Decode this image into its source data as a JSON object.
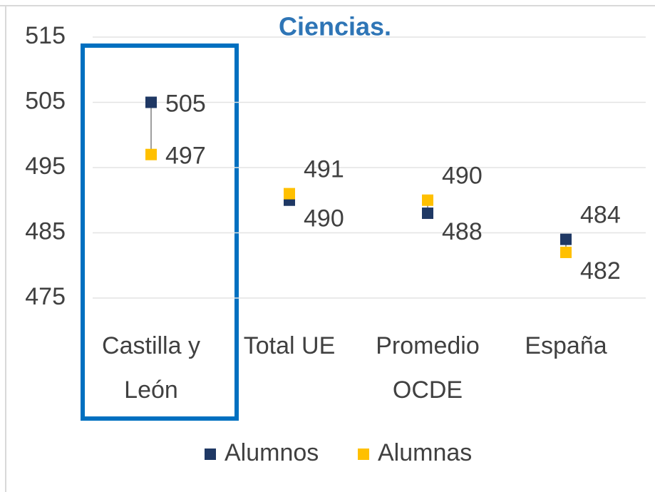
{
  "chart_data": {
    "type": "dot",
    "title": "Ciencias.",
    "categories": [
      "Castilla y León",
      "Total UE",
      "Promedio OCDE",
      "España"
    ],
    "series": [
      {
        "name": "Alumnos",
        "color": "#1f3864",
        "values": [
          505,
          490,
          488,
          484
        ]
      },
      {
        "name": "Alumnas",
        "color": "#ffc000",
        "values": [
          497,
          491,
          490,
          482
        ]
      }
    ],
    "ylim": [
      475,
      515
    ],
    "yticks": [
      475,
      485,
      495,
      505,
      515
    ],
    "grid": true,
    "legend": "bottom"
  }
}
